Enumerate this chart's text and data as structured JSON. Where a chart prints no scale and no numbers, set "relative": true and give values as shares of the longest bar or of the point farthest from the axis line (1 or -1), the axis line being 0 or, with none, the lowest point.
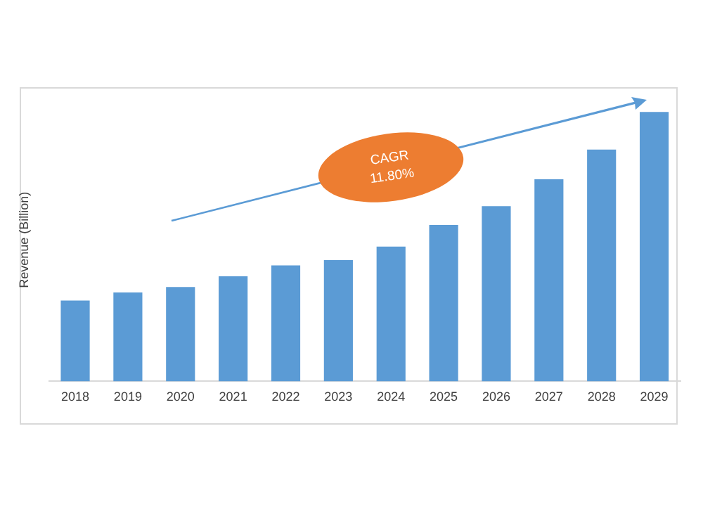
{
  "chart_data": {
    "type": "bar",
    "ylabel": "Revenue (Billion)",
    "relative": true,
    "grid": false,
    "legend": false,
    "categories": [
      "2018",
      "2019",
      "2020",
      "2021",
      "2022",
      "2023",
      "2024",
      "2025",
      "2026",
      "2027",
      "2028",
      "2029"
    ],
    "series": [
      {
        "color": "#5b9bd5",
        "values": [
          0.3,
          0.33,
          0.35,
          0.39,
          0.43,
          0.45,
          0.5,
          0.58,
          0.65,
          0.75,
          0.86,
          1
        ]
      }
    ],
    "annotations": [
      "CAGR\n11.80%"
    ]
  }
}
